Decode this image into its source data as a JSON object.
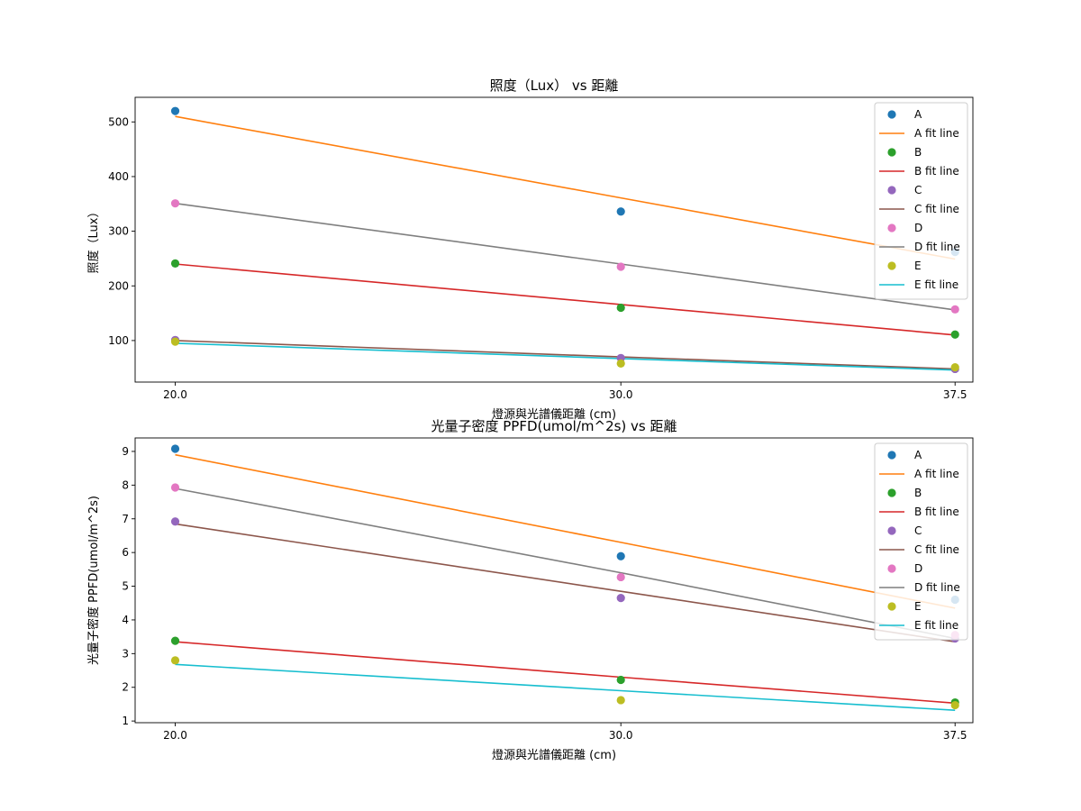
{
  "chart_data": [
    {
      "type": "scatter",
      "title": "照度（Lux） vs 距離",
      "xlabel": "燈源與光譜儀距離 (cm)",
      "ylabel": "照度（Lux）",
      "x": [
        20.0,
        30.0,
        37.5
      ],
      "x_tick_labels": [
        "20.0",
        "30.0",
        "37.5"
      ],
      "xlim": [
        19.1,
        37.9
      ],
      "ylim": [
        24,
        545
      ],
      "y_ticks": [
        100,
        200,
        300,
        400,
        500
      ],
      "grid": false,
      "legend_position": "top-right",
      "series": [
        {
          "name": "A",
          "fit_name": "A fit line",
          "values": [
            520,
            336,
            262
          ],
          "fit": [
            510,
            361,
            249
          ],
          "point_color": "#1f77b4",
          "line_color": "#ff7f0e"
        },
        {
          "name": "B",
          "fit_name": "B fit line",
          "values": [
            241,
            160,
            111
          ],
          "fit": [
            240,
            166,
            110
          ],
          "point_color": "#2ca02c",
          "line_color": "#d62728"
        },
        {
          "name": "C",
          "fit_name": "C fit line",
          "values": [
            101,
            68,
            48
          ],
          "fit": [
            100,
            70,
            48
          ],
          "point_color": "#9467bd",
          "line_color": "#8c564b"
        },
        {
          "name": "D",
          "fit_name": "D fit line",
          "values": [
            351,
            235,
            157
          ],
          "fit": [
            351,
            240,
            156
          ],
          "point_color": "#e377c2",
          "line_color": "#7f7f7f"
        },
        {
          "name": "E",
          "fit_name": "E fit line",
          "values": [
            98,
            58,
            51
          ],
          "fit": [
            95,
            67,
            46
          ],
          "point_color": "#bcbd22",
          "line_color": "#17becf"
        }
      ]
    },
    {
      "type": "scatter",
      "title": "光量子密度 PPFD(umol/m^2s) vs 距離",
      "xlabel": "燈源與光譜儀距離 (cm)",
      "ylabel": "光量子密度 PPFD(umol/m^2s)",
      "x": [
        20.0,
        30.0,
        37.5
      ],
      "x_tick_labels": [
        "20.0",
        "30.0",
        "37.5"
      ],
      "xlim": [
        19.1,
        37.9
      ],
      "ylim": [
        0.95,
        9.4
      ],
      "y_ticks": [
        1,
        2,
        3,
        4,
        5,
        6,
        7,
        8,
        9
      ],
      "grid": false,
      "legend_position": "top-right",
      "series": [
        {
          "name": "A",
          "fit_name": "A fit line",
          "values": [
            9.08,
            5.89,
            4.6
          ],
          "fit": [
            8.9,
            6.3,
            4.35
          ],
          "point_color": "#1f77b4",
          "line_color": "#ff7f0e"
        },
        {
          "name": "B",
          "fit_name": "B fit line",
          "values": [
            3.38,
            2.22,
            1.55
          ],
          "fit": [
            3.35,
            2.3,
            1.53
          ],
          "point_color": "#2ca02c",
          "line_color": "#d62728"
        },
        {
          "name": "C",
          "fit_name": "C fit line",
          "values": [
            6.92,
            4.65,
            3.45
          ],
          "fit": [
            6.85,
            4.85,
            3.35
          ],
          "point_color": "#9467bd",
          "line_color": "#8c564b"
        },
        {
          "name": "D",
          "fit_name": "D fit line",
          "values": [
            7.93,
            5.27,
            3.55
          ],
          "fit": [
            7.9,
            5.4,
            3.45
          ],
          "point_color": "#e377c2",
          "line_color": "#7f7f7f"
        },
        {
          "name": "E",
          "fit_name": "E fit line",
          "values": [
            2.8,
            1.62,
            1.47
          ],
          "fit": [
            2.68,
            1.9,
            1.32
          ],
          "point_color": "#bcbd22",
          "line_color": "#17becf"
        }
      ]
    }
  ]
}
